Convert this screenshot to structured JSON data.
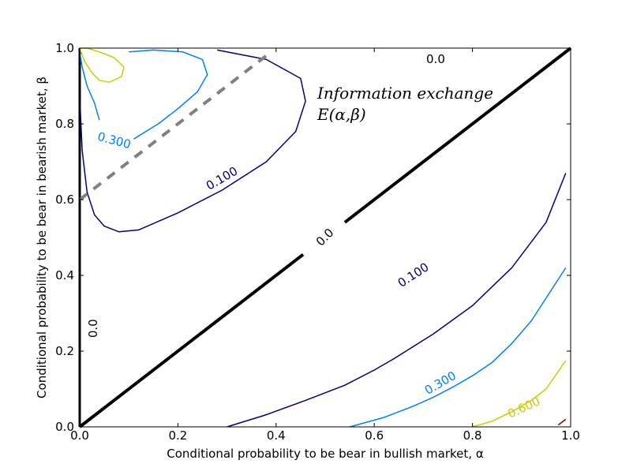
{
  "chart_data": {
    "type": "contour",
    "title": "",
    "xlabel": "Conditional probability to be bear in bullish market, α",
    "ylabel": "Conditional probability to be bear in bearish market, β",
    "xlim": [
      0.0,
      1.0
    ],
    "ylim": [
      0.0,
      1.0
    ],
    "xticks": [
      "0.0",
      "0.2",
      "0.4",
      "0.6",
      "0.8",
      "1.0"
    ],
    "yticks": [
      "0.0",
      "0.2",
      "0.4",
      "0.6",
      "0.8",
      "1.0"
    ],
    "grid": false,
    "annotation": {
      "line1": "Information exchange",
      "line2": "E(α,β)"
    },
    "reference_lines": [
      {
        "name": "diagonal-zero",
        "style": "solid-thick",
        "color": "#000000",
        "x": [
          0.0,
          0.455,
          0.54,
          1.0
        ],
        "y": [
          0.0,
          0.455,
          0.54,
          1.0
        ]
      },
      {
        "name": "dashed-boundary",
        "style": "dashed",
        "color": "#808080",
        "x": [
          0.0,
          0.38
        ],
        "y": [
          0.6,
          0.98
        ]
      }
    ],
    "contours": [
      {
        "level": "0.0",
        "color": "#000000",
        "x": [
          0.0,
          0.0
        ],
        "y": [
          0.0,
          1.0
        ]
      },
      {
        "level": "0.100",
        "color": "#00007f",
        "x": [
          0.0,
          0.005,
          0.015,
          0.03,
          0.05,
          0.08,
          0.12,
          0.2,
          0.29,
          0.38,
          0.44,
          0.46,
          0.45,
          0.38,
          0.28
        ],
        "y": [
          0.87,
          0.73,
          0.62,
          0.56,
          0.53,
          0.515,
          0.52,
          0.565,
          0.625,
          0.7,
          0.78,
          0.86,
          0.92,
          0.97,
          0.995
        ]
      },
      {
        "level": "0.300",
        "color": "#0080ff",
        "x": [
          0.04,
          0.03,
          0.015,
          0.005,
          0.0
        ],
        "y": [
          0.81,
          0.855,
          0.9,
          0.95,
          0.99
        ]
      },
      {
        "level": "0.300",
        "color": "#0080ff",
        "x": [
          0.11,
          0.16,
          0.2,
          0.24,
          0.26,
          0.25,
          0.21,
          0.15,
          0.1
        ],
        "y": [
          0.76,
          0.8,
          0.84,
          0.885,
          0.93,
          0.97,
          0.99,
          0.995,
          0.99
        ]
      },
      {
        "level": "0.600",
        "color": "#cccc00",
        "x": [
          0.0,
          0.01,
          0.025,
          0.04,
          0.06,
          0.085,
          0.09,
          0.07,
          0.04,
          0.015,
          0.0
        ],
        "y": [
          1.0,
          0.965,
          0.935,
          0.915,
          0.91,
          0.925,
          0.95,
          0.975,
          0.99,
          1.0,
          1.0
        ]
      },
      {
        "level": "0.100",
        "color": "#00007f",
        "x": [
          0.3,
          0.38,
          0.46,
          0.54,
          0.6,
          0.64,
          0.72,
          0.8,
          0.88,
          0.95,
          0.99
        ],
        "y": [
          0.0,
          0.032,
          0.07,
          0.11,
          0.15,
          0.18,
          0.245,
          0.32,
          0.42,
          0.54,
          0.67
        ]
      },
      {
        "level": "0.300",
        "color": "#0080ff",
        "x": [
          0.55,
          0.62,
          0.68,
          0.72,
          0.76,
          0.8,
          0.84,
          0.88,
          0.92,
          0.95,
          0.99
        ],
        "y": [
          0.0,
          0.025,
          0.055,
          0.078,
          0.105,
          0.135,
          0.17,
          0.22,
          0.28,
          0.34,
          0.42
        ]
      },
      {
        "level": "0.600",
        "color": "#cccc00",
        "x": [
          0.8,
          0.84,
          0.88,
          0.92,
          0.95,
          0.99
        ],
        "y": [
          0.0,
          0.015,
          0.04,
          0.07,
          0.1,
          0.175
        ]
      },
      {
        "level": "",
        "color": "#7f0000",
        "x": [
          0.975,
          0.99
        ],
        "y": [
          0.005,
          0.02
        ]
      }
    ],
    "contour_labels": [
      {
        "text": "0.0",
        "color": "#000000",
        "x": 0.725,
        "y": 0.97,
        "angle": 0
      },
      {
        "text": "0.0",
        "color": "#000000",
        "x": 0.5,
        "y": 0.5,
        "angle": -45
      },
      {
        "text": "0.0",
        "color": "#000000",
        "x": 0.028,
        "y": 0.26,
        "angle": -90
      },
      {
        "text": "0.100",
        "color": "#00007f",
        "x": 0.29,
        "y": 0.655,
        "angle": -30
      },
      {
        "text": "0.300",
        "color": "#0080ff",
        "x": 0.07,
        "y": 0.755,
        "angle": 15
      },
      {
        "text": "0.100",
        "color": "#00007f",
        "x": 0.68,
        "y": 0.4,
        "angle": -33
      },
      {
        "text": "0.300",
        "color": "#0080ff",
        "x": 0.735,
        "y": 0.115,
        "angle": -30
      },
      {
        "text": "0.600",
        "color": "#cccc00",
        "x": 0.905,
        "y": 0.05,
        "angle": -25
      }
    ]
  }
}
